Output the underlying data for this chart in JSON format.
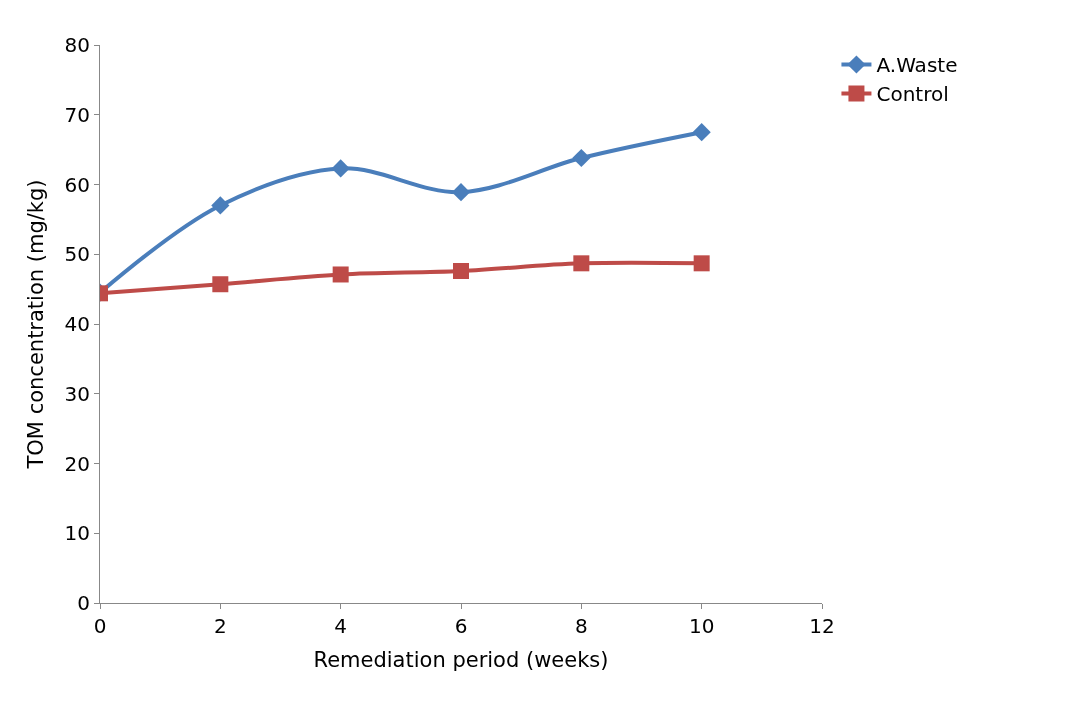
{
  "chart_data": {
    "type": "line",
    "xlabel": "Remediation period (weeks)",
    "ylabel": "TOM concentration (mg/kg)",
    "x": [
      0,
      2,
      4,
      6,
      8,
      10
    ],
    "series": [
      {
        "name": "A.Waste",
        "color": "#4a7ebb",
        "marker": "diamond",
        "values": [
          44.5,
          57.0,
          62.3,
          58.9,
          63.8,
          67.5
        ]
      },
      {
        "name": "Control",
        "color": "#be4b48",
        "marker": "square",
        "values": [
          44.4,
          45.7,
          47.1,
          47.6,
          48.7,
          48.7
        ]
      }
    ],
    "xlim": [
      0,
      12
    ],
    "xticks": [
      0,
      2,
      4,
      6,
      8,
      10,
      12
    ],
    "ylim": [
      0,
      80
    ],
    "yticks": [
      0,
      10,
      20,
      30,
      40,
      50,
      60,
      70,
      80
    ],
    "legend": "top right"
  }
}
